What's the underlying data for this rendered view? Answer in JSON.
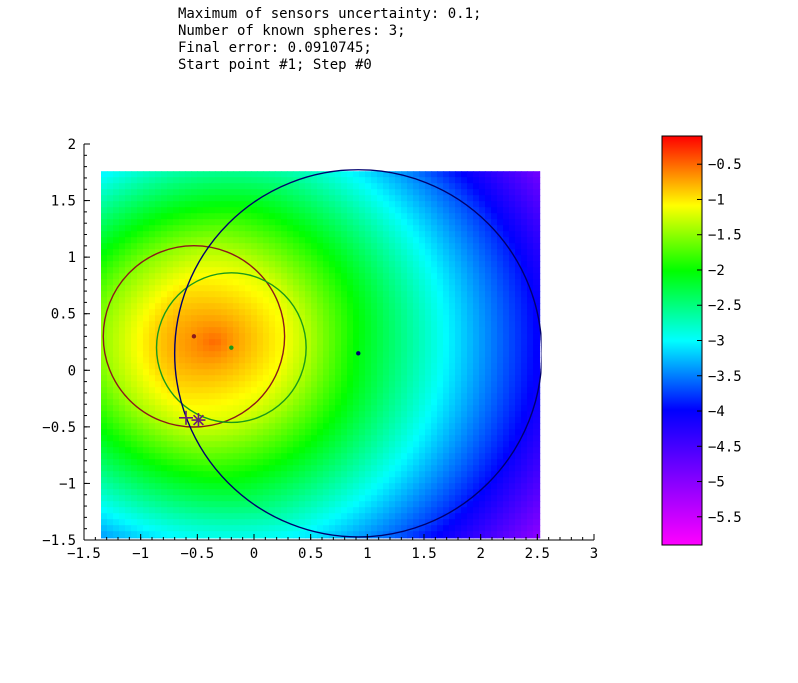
{
  "header_lines": [
    "Maximum of sensors uncertainty: 0.1;",
    "Number of known spheres: 3;",
    "Final error: 0.0910745;",
    "Start point #1; Step #0"
  ],
  "chart_data": {
    "type": "heatmap",
    "title": "",
    "xlabel": "",
    "ylabel": "",
    "xlim": [
      -1.5,
      3
    ],
    "ylim": [
      -1.5,
      2
    ],
    "field_extent": {
      "x": [
        -1.35,
        2.52
      ],
      "y": [
        -1.48,
        1.76
      ]
    },
    "x_ticks": [
      -1.5,
      -1,
      -0.5,
      0,
      0.5,
      1,
      1.5,
      2,
      2.5,
      3
    ],
    "x_tick_labels": [
      "−1.5",
      "−1",
      "−0.5",
      "0",
      "0.5",
      "1",
      "1.5",
      "2",
      "2.5",
      "3"
    ],
    "y_ticks": [
      -1.5,
      -1,
      -0.5,
      0,
      0.5,
      1,
      1.5,
      2
    ],
    "y_tick_labels": [
      "−1.5",
      "−1",
      "−0.5",
      "0",
      "0.5",
      "1",
      "1.5",
      "2"
    ],
    "colorbar": {
      "range": [
        -5.9,
        -0.1
      ],
      "ticks": [
        -0.5,
        -1,
        -1.5,
        -2,
        -2.5,
        -3,
        -3.5,
        -4,
        -4.5,
        -5,
        -5.5
      ],
      "tick_labels": [
        "−0.5",
        "−1",
        "−1.5",
        "−2",
        "−2.5",
        "−3",
        "−3.5",
        "−4",
        "−4.5",
        "−5",
        "−5.5"
      ],
      "colormap": "hsv reversed: red (high) to magenta (low)"
    },
    "spheres": [
      {
        "center": [
          -0.53,
          0.3
        ],
        "radius": 0.8,
        "color": "#8b1a1a"
      },
      {
        "center": [
          -0.2,
          0.2
        ],
        "radius": 0.66,
        "color": "#1a9a1a"
      },
      {
        "center": [
          0.92,
          0.15
        ],
        "radius": 1.62,
        "color": "#00006e"
      }
    ],
    "estimate_markers": [
      {
        "x": -0.6,
        "y": -0.42,
        "symbol": "plus",
        "color": "#6a1b7a"
      },
      {
        "x": -0.49,
        "y": -0.44,
        "symbol": "asterisk",
        "color": "#6a1b7a"
      }
    ]
  }
}
